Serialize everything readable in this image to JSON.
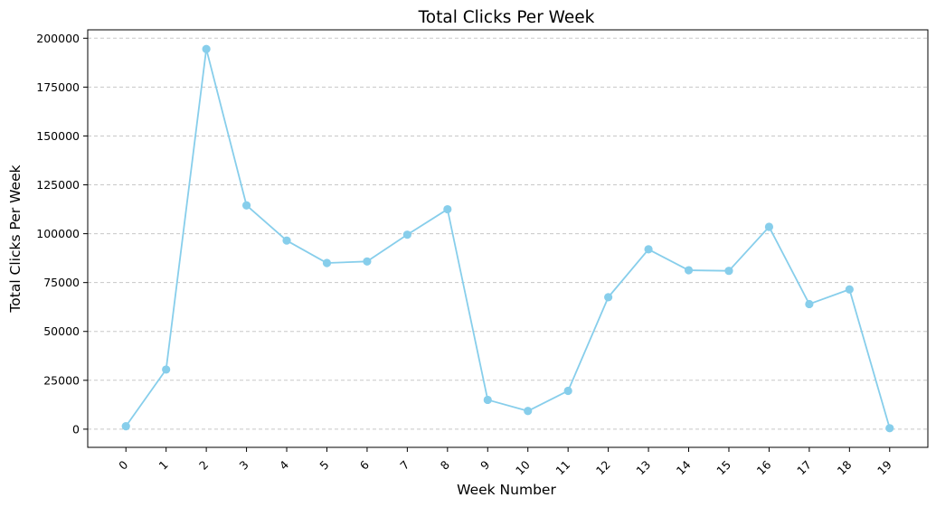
{
  "chart_data": {
    "type": "line",
    "title": "Total Clicks Per Week",
    "xlabel": "Week Number",
    "ylabel": "Total Clicks Per Week",
    "x": [
      0,
      1,
      2,
      3,
      4,
      5,
      6,
      7,
      8,
      9,
      10,
      11,
      12,
      13,
      14,
      15,
      16,
      17,
      18,
      19
    ],
    "x_tick_labels": [
      "0",
      "1",
      "2",
      "3",
      "4",
      "5",
      "6",
      "7",
      "8",
      "9",
      "10",
      "11",
      "12",
      "13",
      "14",
      "15",
      "16",
      "17",
      "18",
      "19"
    ],
    "series": [
      {
        "values": [
          1500,
          30500,
          194500,
          114500,
          96500,
          85000,
          85800,
          99500,
          112500,
          15000,
          9300,
          19600,
          67500,
          92000,
          81300,
          81000,
          103500,
          64000,
          71500,
          500
        ],
        "color": "#87ceeb",
        "marker": "circle"
      }
    ],
    "y_ticks": [
      0,
      25000,
      50000,
      75000,
      100000,
      125000,
      150000,
      175000,
      200000
    ],
    "y_tick_labels": [
      "0",
      "25000",
      "50000",
      "75000",
      "100000",
      "125000",
      "150000",
      "175000",
      "200000"
    ],
    "xlim": [
      -0.95,
      19.95
    ],
    "ylim": [
      -9300,
      204300
    ],
    "grid": {
      "axis": "y",
      "style": "dashed",
      "color": "#c8c8c8"
    },
    "x_tick_rotation": 45,
    "legend": "none"
  }
}
